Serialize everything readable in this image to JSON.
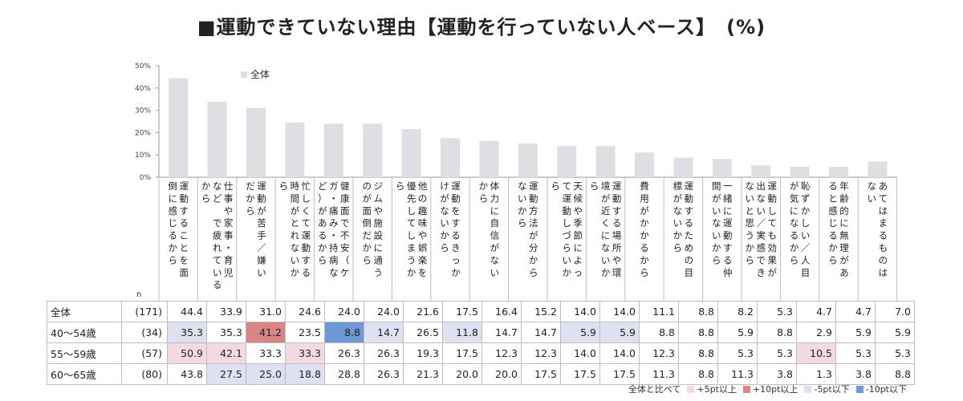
{
  "title": "■運動できていない理由【運動を行っていない人ベース】　(%)",
  "n_label": "n",
  "compare_label": "全体と比べて",
  "legend_items": [
    {
      "label": "+5pt以上",
      "color": "#f3d9e1"
    },
    {
      "label": "+10pt以上",
      "color": "#d98585"
    },
    {
      "label": "-5pt以下",
      "color": "#dde1f2"
    },
    {
      "label": "-10pt以下",
      "color": "#6f97d6"
    }
  ],
  "chart_data": {
    "type": "bar",
    "series_name": "全体",
    "ylim": [
      0,
      50
    ],
    "ytick_labels": [
      "0%",
      "10%",
      "20%",
      "30%",
      "40%",
      "50%"
    ],
    "bar_color": "#e0dde3",
    "categories": [
      [
        "運動することを面",
        "倒に感じるから"
      ],
      [
        "仕事や家事・育児",
        "など で疲れている",
        "から"
      ],
      [
        "運動が苦手／嫌い",
        "だから"
      ],
      [
        "忙しくて運動する",
        "時間がとれないか",
        "ら"
      ],
      [
        "健康面で不安（ケ",
        "ガ・痛み・持病な",
        "ど）があるから"
      ],
      [
        "ジムや施設に通う",
        "のが面倒だから"
      ],
      [
        "他の趣味や娯楽を",
        "優先してしまうか",
        "ら"
      ],
      [
        "運動をするきっか",
        "けがないから"
      ],
      [
        "体力に自信がない",
        "から"
      ],
      [
        "運動方法が分から",
        "ないから"
      ],
      [
        "天候や季節によっ",
        "て運動しづらいか",
        "ら"
      ],
      [
        "運動する場所や環",
        "境が近くにないか",
        "ら"
      ],
      [
        "費用がかかるから"
      ],
      [
        "運動するための目",
        "標がないから"
      ],
      [
        "一緒に運動する仲",
        "間がいないから"
      ],
      [
        "運動しても効果が",
        "出ない／実感でき",
        "ないと思うから"
      ],
      [
        "恥ずかしい／人目",
        "が気になるから"
      ],
      [
        "年齢的に無理があ",
        "ると感じるから"
      ],
      [
        "あてはまるものは",
        "ない"
      ]
    ],
    "values": [
      44.4,
      33.9,
      31.0,
      24.6,
      24.0,
      24.0,
      21.6,
      17.5,
      16.4,
      15.2,
      14.0,
      14.0,
      11.1,
      8.8,
      8.2,
      5.3,
      4.7,
      4.7,
      7.0
    ]
  },
  "table": {
    "rows": [
      {
        "label": "全体",
        "n": "(171)",
        "values": [
          "44.4",
          "33.9",
          "31.0",
          "24.6",
          "24.0",
          "24.0",
          "21.6",
          "17.5",
          "16.4",
          "15.2",
          "14.0",
          "14.0",
          "11.1",
          "8.8",
          "8.2",
          "5.3",
          "4.7",
          "4.7",
          "7.0"
        ],
        "highlight": [
          "",
          "",
          "",
          "",
          "",
          "",
          "",
          "",
          "",
          "",
          "",
          "",
          "",
          "",
          "",
          "",
          "",
          "",
          ""
        ]
      },
      {
        "label": "40〜54歳",
        "n": "(34)",
        "values": [
          "35.3",
          "35.3",
          "41.2",
          "23.5",
          "8.8",
          "14.7",
          "26.5",
          "11.8",
          "14.7",
          "14.7",
          "5.9",
          "5.9",
          "8.8",
          "8.8",
          "5.9",
          "8.8",
          "2.9",
          "5.9",
          "5.9"
        ],
        "highlight": [
          "-5",
          "",
          "+10",
          "",
          "-10",
          "-5",
          "",
          "-5",
          "",
          "",
          "-5",
          "-5",
          "",
          "",
          "",
          "",
          "",
          "",
          ""
        ]
      },
      {
        "label": "55〜59歳",
        "n": "(57)",
        "values": [
          "50.9",
          "42.1",
          "33.3",
          "33.3",
          "26.3",
          "26.3",
          "19.3",
          "17.5",
          "12.3",
          "12.3",
          "14.0",
          "14.0",
          "12.3",
          "8.8",
          "5.3",
          "5.3",
          "10.5",
          "5.3",
          "5.3"
        ],
        "highlight": [
          "+5",
          "+5",
          "",
          "+5",
          "",
          "",
          "",
          "",
          "",
          "",
          "",
          "",
          "",
          "",
          "",
          "",
          "+5",
          "",
          ""
        ]
      },
      {
        "label": "60〜65歳",
        "n": "(80)",
        "values": [
          "43.8",
          "27.5",
          "25.0",
          "18.8",
          "28.8",
          "26.3",
          "21.3",
          "20.0",
          "20.0",
          "17.5",
          "17.5",
          "17.5",
          "11.3",
          "8.8",
          "11.3",
          "3.8",
          "1.3",
          "3.8",
          "8.8"
        ],
        "highlight": [
          "",
          "-5",
          "-5",
          "-5",
          "",
          "",
          "",
          "",
          "",
          "",
          "",
          "",
          "",
          "",
          "",
          "",
          "",
          "",
          ""
        ]
      }
    ]
  }
}
